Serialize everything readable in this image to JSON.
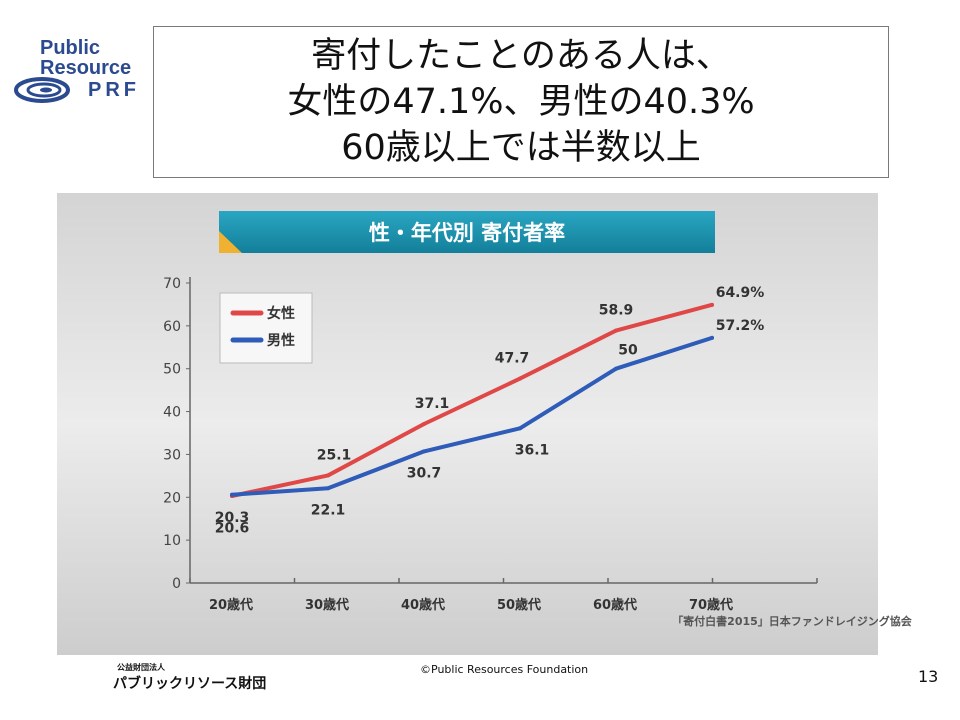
{
  "logo": {
    "line1": "Public",
    "line2": "Resource",
    "line3": "PRF",
    "color": "#2b4a8f"
  },
  "title_lines": [
    "寄付したことのある人は、",
    "女性の47.1%、男性の40.3%",
    "60歳以上では半数以上"
  ],
  "chart_data": {
    "type": "line",
    "title": "性・年代別 寄付者率",
    "categories": [
      "20歳代",
      "30歳代",
      "40歳代",
      "50歳代",
      "60歳代",
      "70歳代"
    ],
    "series": [
      {
        "name": "女性",
        "color": "#e04848",
        "values": [
          20.3,
          25.1,
          37.1,
          47.7,
          58.9,
          64.9
        ],
        "labels": [
          "20.3",
          "25.1",
          "37.1",
          "47.7",
          "58.9",
          "64.9%"
        ]
      },
      {
        "name": "男性",
        "color": "#2e5cb8",
        "values": [
          20.6,
          22.1,
          30.7,
          36.1,
          50,
          57.2
        ],
        "labels": [
          "20.6",
          "22.1",
          "30.7",
          "36.1",
          "50",
          "57.2%"
        ]
      }
    ],
    "yticks": [
      "0",
      "10",
      "20",
      "30",
      "40",
      "50",
      "60",
      "70"
    ],
    "ylim": [
      0,
      70
    ],
    "legend_position": "top-left",
    "source": "「寄付白書2015」日本ファンドレイジング協会"
  },
  "footer": {
    "org_small": "公益財団法人",
    "org": "パブリックリソース財団",
    "copyright": "©Public Resources Foundation",
    "page": "13"
  }
}
